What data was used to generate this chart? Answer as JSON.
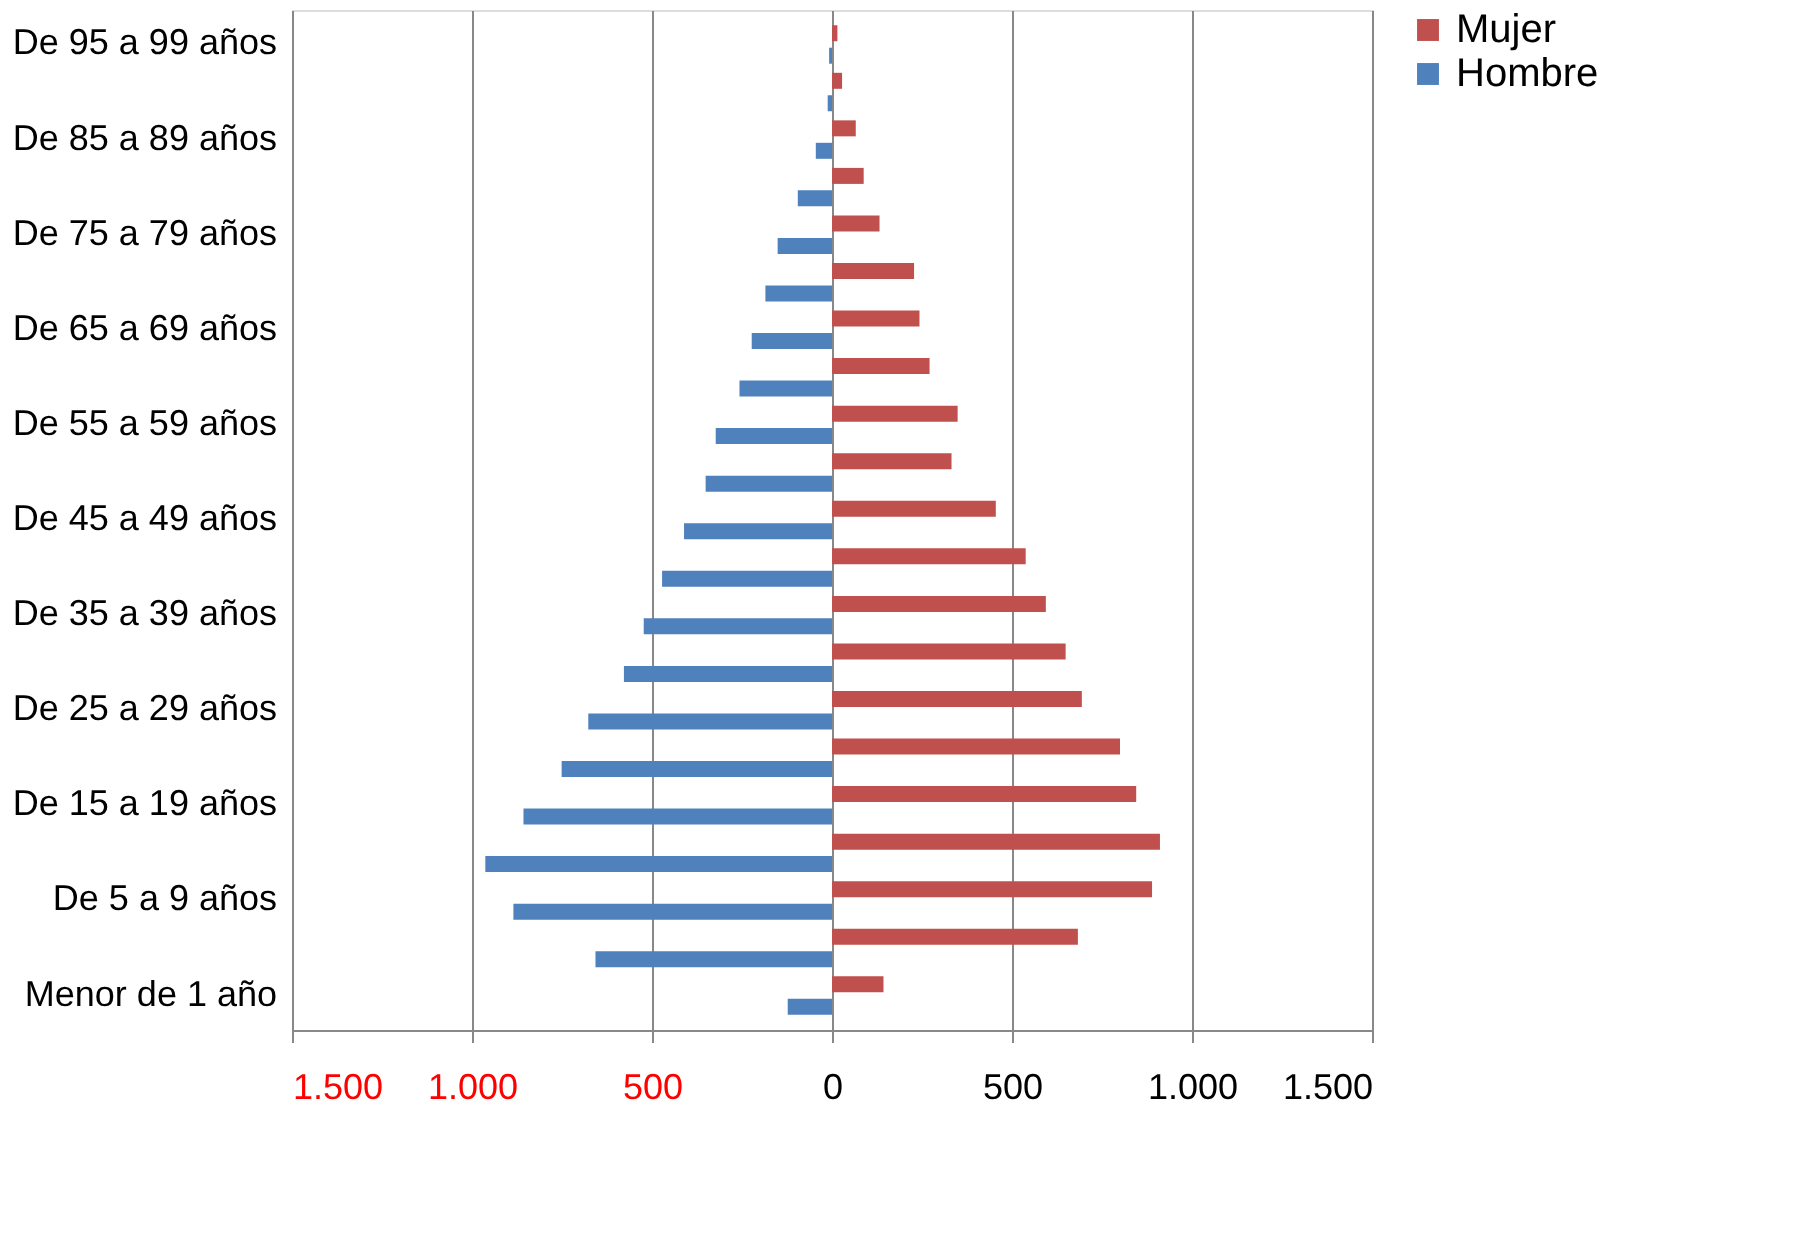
{
  "chart_data": {
    "type": "bar",
    "orientation": "horizontal",
    "categories": [
      "De 95 a 99 años",
      null,
      "De 85 a 89 años",
      null,
      "De 75 a 79 años",
      null,
      "De 65 a 69 años",
      null,
      "De 55 a 59 años",
      null,
      "De 45 a 49 años",
      null,
      "De 35 a 39 años",
      null,
      "De 25 a 29 años",
      null,
      "De 15 a 19 años",
      null,
      "De 5 a 9 años",
      null,
      "Menor de 1 año"
    ],
    "series": [
      {
        "name": "Mujer",
        "color": "#c0504d",
        "values": [
          15,
          28,
          66,
          88,
          132,
          228,
          243,
          271,
          349,
          332,
          455,
          538,
          594,
          649,
          694,
          800,
          845,
          911,
          889,
          683,
          143
        ]
      },
      {
        "name": "Hombre",
        "color": "#4f81bd",
        "values": [
          -8,
          -12,
          -45,
          -95,
          -151,
          -185,
          -223,
          -257,
          -323,
          -351,
          -411,
          -472,
          -523,
          -578,
          -677,
          -751,
          -857,
          -963,
          -885,
          -657,
          -123
        ]
      }
    ],
    "xlim": [
      -1500,
      1500
    ],
    "xticks": [
      {
        "value": -1500,
        "label": "1.500"
      },
      {
        "value": -1000,
        "label": "1.000"
      },
      {
        "value": -500,
        "label": "500"
      },
      0,
      500,
      {
        "value": 1000,
        "label": "1.000"
      },
      {
        "value": 1500,
        "label": "1.500"
      }
    ],
    "grid": "x",
    "legend": "right"
  }
}
